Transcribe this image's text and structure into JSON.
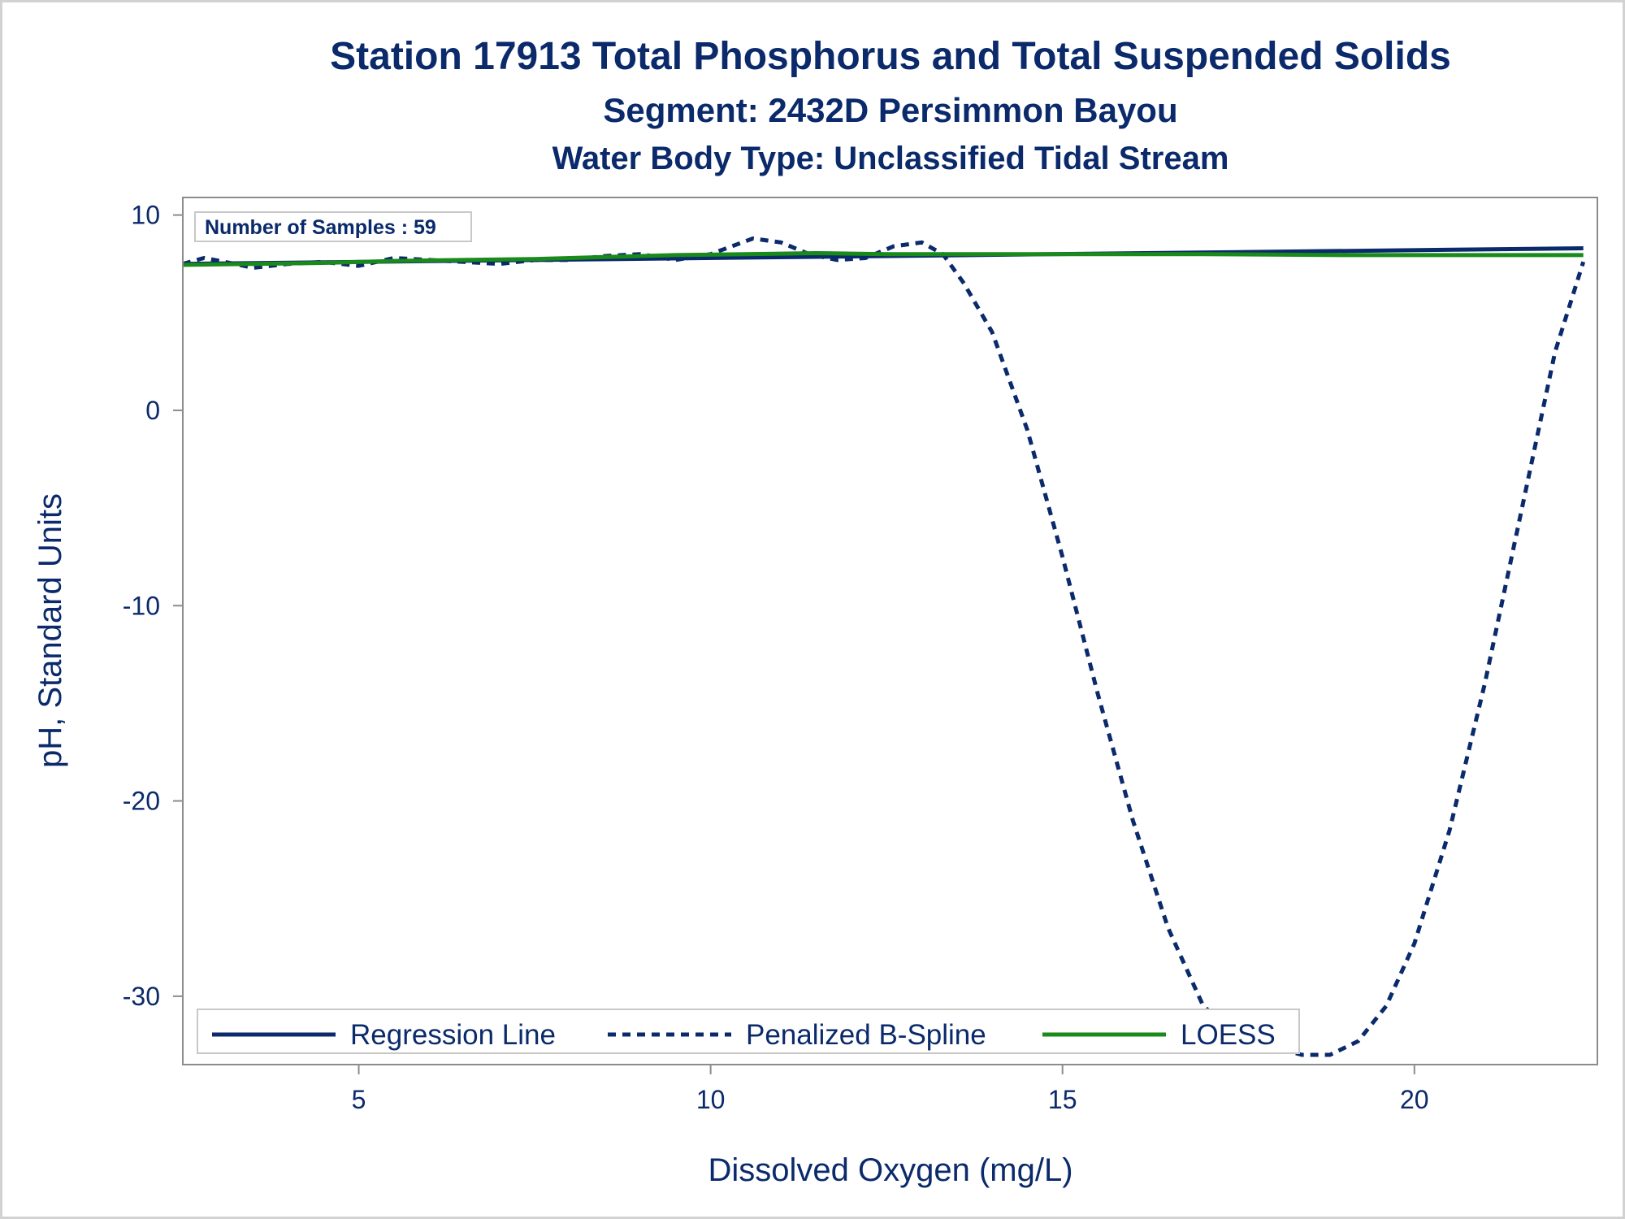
{
  "chart_data": {
    "type": "line",
    "title": "Station 17913  Total Phosphorus and Total Suspended Solids",
    "subtitle": "Segment: 2432D  Persimmon Bayou",
    "subtitle2": "Water Body Type: Unclassified Tidal Stream",
    "xlabel": "Dissolved Oxygen (mg/L)",
    "ylabel": "pH, Standard Units",
    "xlim": [
      2.5,
      22.6
    ],
    "ylim": [
      -33.5,
      10.9
    ],
    "x_ticks": [
      5,
      10,
      15,
      20
    ],
    "y_ticks": [
      10,
      0,
      -10,
      -20,
      -30
    ],
    "x_tick_labels": [
      "5",
      "10",
      "15",
      "20"
    ],
    "y_tick_labels": [
      "10",
      "0",
      "-10",
      "-20",
      "-30"
    ],
    "grid": false,
    "annotation": "Number of Samples : 59",
    "legend_position": "bottom-left, inside plot",
    "colors": {
      "regression": "#0b2a6b",
      "spline": "#0b2a6b",
      "loess": "#1a8a1a",
      "text": "#0b2a6b",
      "frame": "#8c8c8c"
    },
    "series": [
      {
        "name": "Regression Line",
        "style": "solid",
        "color": "#0b2a6b",
        "x": [
          2.5,
          22.4
        ],
        "y": [
          7.5,
          8.3
        ]
      },
      {
        "name": "Penalized B-Spline",
        "style": "dashed",
        "color": "#0b2a6b",
        "x": [
          2.5,
          2.8,
          3.1,
          3.5,
          4.0,
          4.5,
          5.0,
          5.5,
          6.0,
          6.5,
          7.0,
          7.5,
          8.0,
          8.5,
          9.0,
          9.5,
          10.0,
          10.3,
          10.6,
          11.0,
          11.4,
          11.8,
          12.2,
          12.6,
          13.0,
          13.3,
          13.6,
          14.0,
          14.5,
          15.0,
          15.5,
          16.0,
          16.5,
          17.0,
          17.5,
          18.0,
          18.4,
          18.8,
          19.2,
          19.6,
          20.0,
          20.5,
          21.0,
          21.5,
          22.0,
          22.4
        ],
        "y": [
          7.5,
          7.8,
          7.6,
          7.3,
          7.5,
          7.6,
          7.4,
          7.8,
          7.7,
          7.6,
          7.5,
          7.7,
          7.7,
          7.9,
          8.0,
          7.7,
          8.0,
          8.4,
          8.8,
          8.6,
          8.0,
          7.7,
          7.8,
          8.4,
          8.6,
          8.0,
          6.5,
          4.0,
          -1.0,
          -7.5,
          -14.5,
          -21.0,
          -26.5,
          -30.5,
          -32.0,
          -32.6,
          -33.0,
          -33.0,
          -32.3,
          -30.5,
          -27.3,
          -21.5,
          -14.0,
          -5.5,
          3.0,
          7.6
        ]
      },
      {
        "name": "LOESS",
        "style": "solid",
        "color": "#1a8a1a",
        "x": [
          2.5,
          3.5,
          4.5,
          5.5,
          6.5,
          7.5,
          8.5,
          9.5,
          10.5,
          11.5,
          12.5,
          13.5,
          15.0,
          17.0,
          19.0,
          21.0,
          22.4
        ],
        "y": [
          7.45,
          7.5,
          7.55,
          7.65,
          7.7,
          7.75,
          7.85,
          7.95,
          8.0,
          8.05,
          8.0,
          8.0,
          8.0,
          8.0,
          7.95,
          7.95,
          7.95
        ]
      }
    ]
  }
}
